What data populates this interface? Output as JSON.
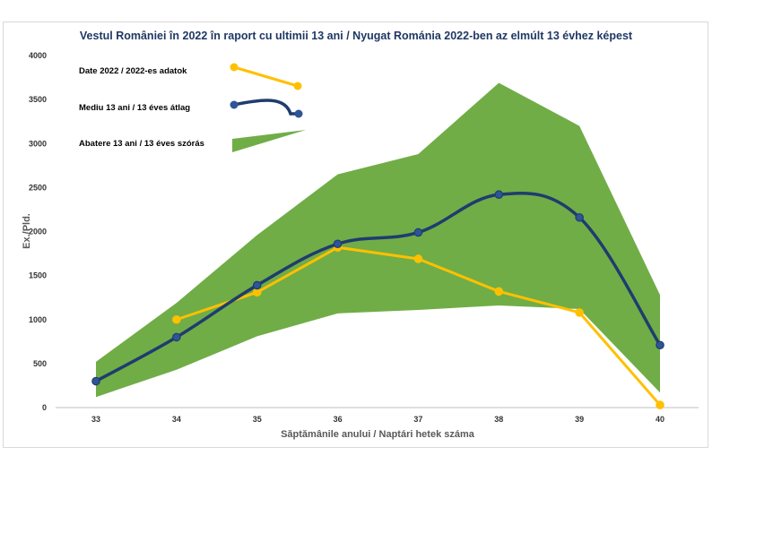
{
  "chart_data": {
    "type": "line",
    "title": "Vestul României în 2022 în raport cu ultimii 13 ani / Nyugat Románia 2022-ben az elmúlt 13 évhez képest",
    "xlabel": "Săptămânile anului / Naptári hetek száma",
    "ylabel": "Ex./Pld.",
    "categories": [
      "33",
      "34",
      "35",
      "36",
      "37",
      "38",
      "39",
      "40"
    ],
    "ylim": [
      0,
      4000
    ],
    "yticks": [
      "0",
      "500",
      "1000",
      "1500",
      "2000",
      "2500",
      "3000",
      "3500",
      "4000"
    ],
    "grid": false,
    "legend_position": "top-left",
    "series": [
      {
        "name": "Date 2022 / 2022-es adatok",
        "color": "#ffc000",
        "values": [
          null,
          1000,
          1310,
          1820,
          1690,
          1320,
          1080,
          30
        ]
      },
      {
        "name": "Mediu 13 ani / 13 éves átlag",
        "color": "#1f3c6e",
        "values": [
          300,
          800,
          1390,
          1860,
          1990,
          2420,
          2160,
          710
        ]
      }
    ],
    "band": {
      "name": "Abatere 13 ani / 13 éves szórás",
      "color": "#70ad47",
      "upper": [
        520,
        1190,
        1960,
        2650,
        2880,
        3690,
        3200,
        1280
      ],
      "lower": [
        120,
        430,
        810,
        1070,
        1110,
        1160,
        1120,
        170
      ]
    }
  }
}
